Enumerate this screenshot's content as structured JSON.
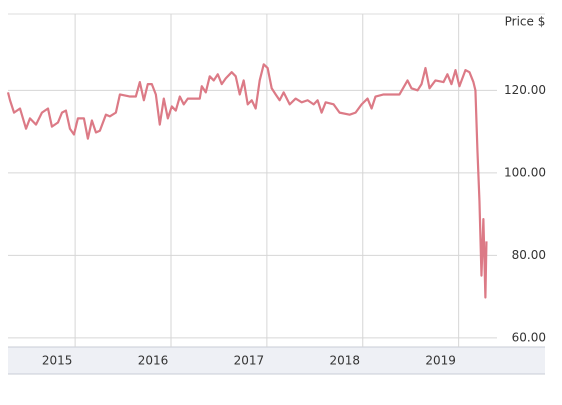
{
  "chart_data": {
    "type": "line",
    "y_axis_label": "Price $",
    "xlim": [
      2014.3,
      2019.4
    ],
    "xticks": [
      2015,
      2016,
      2017,
      2018,
      2019
    ],
    "ylim": [
      57.8,
      138.5
    ],
    "yticks": [
      {
        "value": 60,
        "label": "60.00"
      },
      {
        "value": 80,
        "label": "80.00"
      },
      {
        "value": 100,
        "label": "100.00"
      },
      {
        "value": 120,
        "label": "120.00"
      }
    ],
    "grid": true,
    "series": [
      {
        "color": "#dc7a86",
        "x": [
          2014.3,
          2014.321,
          2014.363,
          2014.425,
          2014.488,
          2014.529,
          2014.592,
          2014.654,
          2014.717,
          2014.758,
          2014.821,
          2014.863,
          2014.904,
          2014.946,
          2014.988,
          2015.029,
          2015.092,
          2015.133,
          2015.175,
          2015.217,
          2015.258,
          2015.321,
          2015.363,
          2015.425,
          2015.467,
          2015.571,
          2015.633,
          2015.675,
          2015.717,
          2015.758,
          2015.8,
          2015.842,
          2015.883,
          2015.925,
          2015.967,
          2016.008,
          2016.05,
          2016.092,
          2016.133,
          2016.175,
          2016.3,
          2016.321,
          2016.363,
          2016.404,
          2016.446,
          2016.488,
          2016.529,
          2016.571,
          2016.633,
          2016.675,
          2016.717,
          2016.758,
          2016.8,
          2016.842,
          2016.883,
          2016.925,
          2016.967,
          2017.008,
          2017.05,
          2017.092,
          2017.133,
          2017.175,
          2017.238,
          2017.3,
          2017.363,
          2017.425,
          2017.488,
          2017.529,
          2017.571,
          2017.613,
          2017.696,
          2017.758,
          2017.863,
          2017.925,
          2017.988,
          2018.05,
          2018.092,
          2018.133,
          2018.217,
          2018.383,
          2018.467,
          2018.508,
          2018.571,
          2018.613,
          2018.654,
          2018.696,
          2018.758,
          2018.842,
          2018.883,
          2018.925,
          2018.967,
          2019.008,
          2019.071,
          2019.113,
          2019.154,
          2019.175,
          2019.196,
          2019.217,
          2019.238,
          2019.258,
          2019.279,
          2019.29
        ],
        "values": [
          119.5,
          117.6,
          114.6,
          115.6,
          110.7,
          113.2,
          111.7,
          114.6,
          115.6,
          111.2,
          112.2,
          114.6,
          115.1,
          110.7,
          109.3,
          113.2,
          113.2,
          108.3,
          112.7,
          109.8,
          110.2,
          114.1,
          113.7,
          114.6,
          119.0,
          118.5,
          118.5,
          122.0,
          117.6,
          121.5,
          121.5,
          119.0,
          111.7,
          118.0,
          113.2,
          116.1,
          115.1,
          118.5,
          116.6,
          118.0,
          118.0,
          121.0,
          119.5,
          123.4,
          122.4,
          123.9,
          121.5,
          122.9,
          124.4,
          123.4,
          119.0,
          122.4,
          116.6,
          117.6,
          115.6,
          122.4,
          126.3,
          125.4,
          120.5,
          119.0,
          117.6,
          119.5,
          116.6,
          118.0,
          117.1,
          117.6,
          116.6,
          117.6,
          114.6,
          117.1,
          116.6,
          114.6,
          114.1,
          114.6,
          116.6,
          118.0,
          115.6,
          118.5,
          119.0,
          119.0,
          122.4,
          120.5,
          120.0,
          121.5,
          125.4,
          120.5,
          122.4,
          122.0,
          123.9,
          121.5,
          124.9,
          121.0,
          124.9,
          124.4,
          122.0,
          120.0,
          105.4,
          93.2,
          75.1,
          88.8,
          69.8,
          83.4
        ]
      }
    ]
  }
}
